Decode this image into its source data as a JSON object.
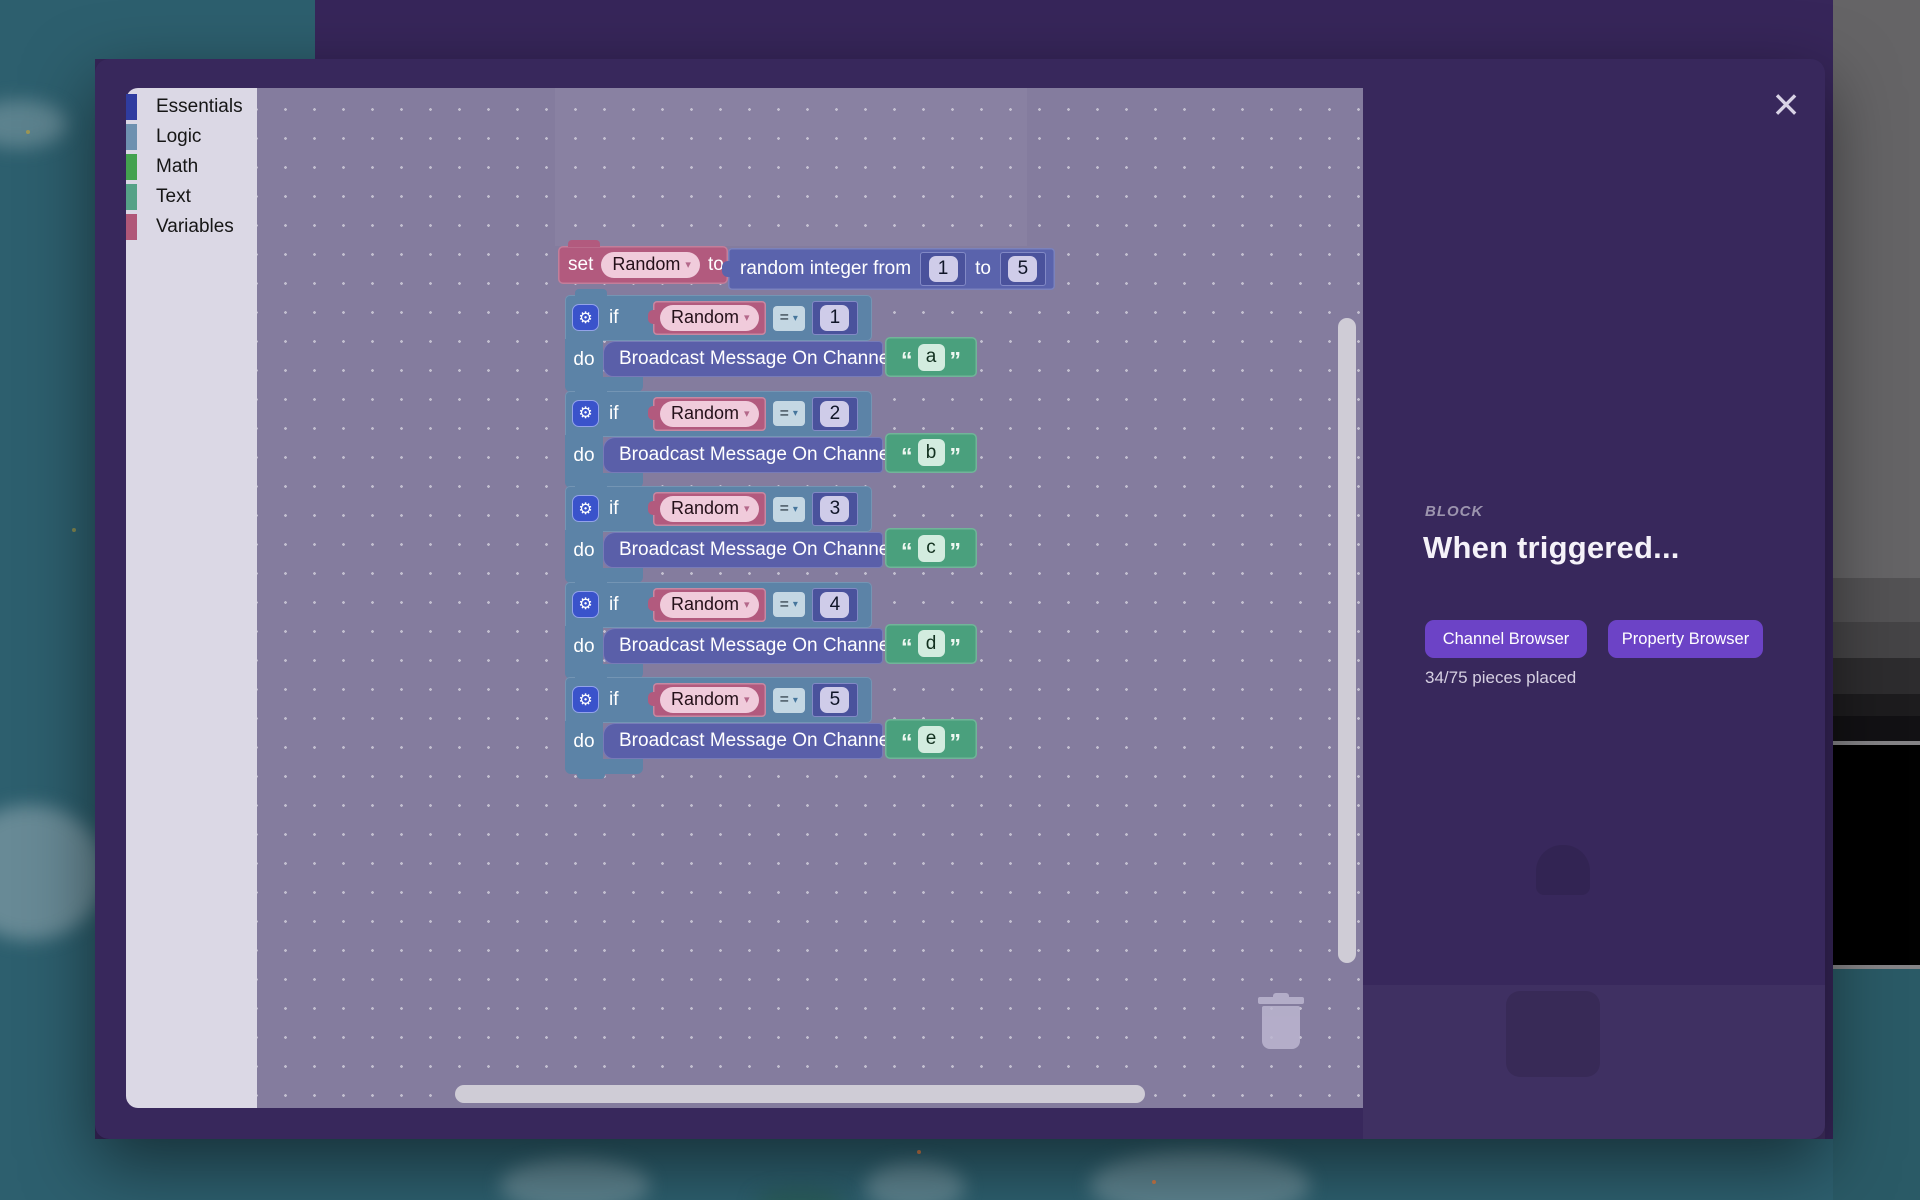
{
  "window": {
    "close_icon": "×"
  },
  "toolbox": {
    "categories": [
      {
        "label": "Essentials",
        "color": "#2f3ca0"
      },
      {
        "label": "Logic",
        "color": "#6e91b0"
      },
      {
        "label": "Math",
        "color": "#43a24f"
      },
      {
        "label": "Text",
        "color": "#55a287"
      },
      {
        "label": "Variables",
        "color": "#b05778"
      }
    ]
  },
  "blocks": {
    "gear_icon": "⚙",
    "set": {
      "set_label": "set",
      "variable": "Random",
      "dropdown_arrow": "▾",
      "to_label": "to"
    },
    "random": {
      "label": "random integer from",
      "from_value": "1",
      "to_label": "to",
      "to_value": "5"
    },
    "if_rows": [
      {
        "if_label": "if",
        "variable": "Random",
        "dropdown_arrow": "▾",
        "operator": "=",
        "value": "1",
        "do_label": "do",
        "action_label": "Broadcast Message On Channel",
        "open_quote": "“",
        "channel": "a",
        "close_quote": "”"
      },
      {
        "if_label": "if",
        "variable": "Random",
        "dropdown_arrow": "▾",
        "operator": "=",
        "value": "2",
        "do_label": "do",
        "action_label": "Broadcast Message On Channel",
        "open_quote": "“",
        "channel": "b",
        "close_quote": "”"
      },
      {
        "if_label": "if",
        "variable": "Random",
        "dropdown_arrow": "▾",
        "operator": "=",
        "value": "3",
        "do_label": "do",
        "action_label": "Broadcast Message On Channel",
        "open_quote": "“",
        "channel": "c",
        "close_quote": "”"
      },
      {
        "if_label": "if",
        "variable": "Random",
        "dropdown_arrow": "▾",
        "operator": "=",
        "value": "4",
        "do_label": "do",
        "action_label": "Broadcast Message On Channel",
        "open_quote": "“",
        "channel": "d",
        "close_quote": "”"
      },
      {
        "if_label": "if",
        "variable": "Random",
        "dropdown_arrow": "▾",
        "operator": "=",
        "value": "5",
        "do_label": "do",
        "action_label": "Broadcast Message On Channel",
        "open_quote": "“",
        "channel": "e",
        "close_quote": "”"
      }
    ]
  },
  "panel": {
    "eyebrow": "BLOCK",
    "title": "When triggered...",
    "channel_button": "Channel Browser",
    "property_button": "Property Browser",
    "status": "34/75 pieces placed",
    "button_color": "#6c43c6"
  },
  "colors": {
    "modal_bg": "#38285c",
    "workspace_bg": "#847c9e",
    "if_block": "#5c83a7",
    "variable_block": "#b25a7e",
    "math_block": "#5a63ac",
    "broadcast_block": "#5a5fa9",
    "text_block": "#4aa07d",
    "scene_teal": "#2d5f6e"
  }
}
